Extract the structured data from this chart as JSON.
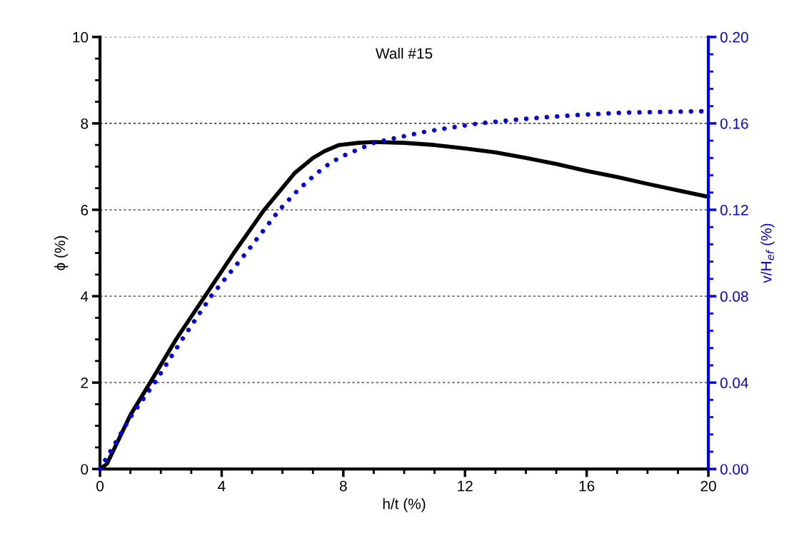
{
  "chart_data": {
    "type": "line",
    "title": "Wall #15",
    "xlabel": "h/t (%)",
    "ylabel": "ϕ (%)",
    "y2label": "v/H$_{ef}$ (%)",
    "xlim": [
      0,
      20
    ],
    "xticks": [
      0,
      4,
      8,
      12,
      16,
      20
    ],
    "ylim": [
      0,
      10
    ],
    "yticks": [
      0,
      2,
      4,
      6,
      8,
      10
    ],
    "y2lim": [
      0,
      0.2
    ],
    "y2ticks": [
      {
        "value": 0,
        "label": "0.00"
      },
      {
        "value": 0.04,
        "label": "0.04"
      },
      {
        "value": 0.08,
        "label": "0.08"
      },
      {
        "value": 0.12,
        "label": "0.12"
      },
      {
        "value": 0.16,
        "label": "0.16"
      },
      {
        "value": 0.2,
        "label": "0.20"
      }
    ],
    "grid": "y",
    "legend": false,
    "series": [
      {
        "color": "#000000",
        "line_style": "solid",
        "axis": "y",
        "x": [
          0,
          0.23,
          1,
          1.65,
          2.5,
          3.45,
          4.4,
          5.4,
          6.4,
          7.0,
          7.39,
          7.86,
          8.5,
          9.0,
          10,
          11,
          12,
          13,
          14,
          15,
          16,
          17,
          18,
          19,
          20
        ],
        "values": [
          0,
          0.12,
          1.25,
          2.0,
          3.0,
          4.0,
          5.0,
          6.0,
          6.85,
          7.2,
          7.36,
          7.5,
          7.55,
          7.57,
          7.55,
          7.5,
          7.42,
          7.33,
          7.2,
          7.06,
          6.9,
          6.76,
          6.6,
          6.45,
          6.3
        ]
      },
      {
        "color": "#0000ff",
        "line_style": "dotted",
        "axis": "y2",
        "x": [
          0,
          0.5,
          1,
          1.8,
          2.7,
          3.65,
          4.8,
          5.9,
          6.5,
          7.09,
          7.6,
          8.0,
          8.5,
          9.0,
          9.8,
          10.63,
          11.5,
          12.46,
          13.5,
          14.5,
          15.5,
          16.5,
          17.3,
          18.5,
          19.86
        ],
        "values": [
          0,
          0.012,
          0.024,
          0.04,
          0.06,
          0.08,
          0.1,
          0.12,
          0.129,
          0.1365,
          0.142,
          0.145,
          0.148,
          0.151,
          0.1535,
          0.156,
          0.158,
          0.16,
          0.1615,
          0.1627,
          0.1637,
          0.1645,
          0.165,
          0.1653,
          0.1656
        ]
      }
    ]
  }
}
